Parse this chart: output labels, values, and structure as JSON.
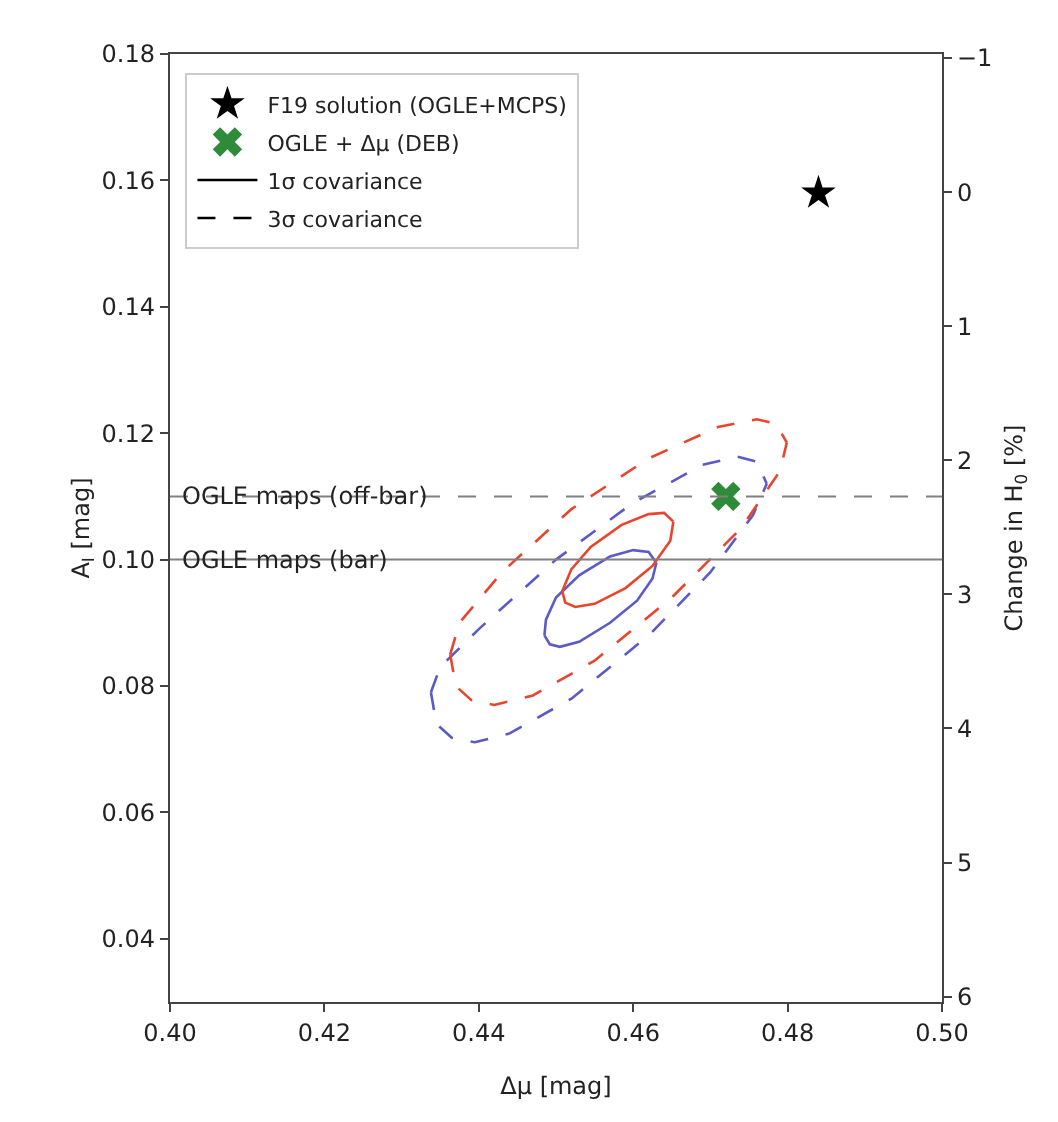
{
  "chart_data": {
    "type": "scatter",
    "xlabel": "Δμ [mag]",
    "ylabel": "A$_{I}$ [mag]",
    "y2label": "Change in H$_{0}$ [%]",
    "xlim": [
      0.4,
      0.5
    ],
    "xticks": [
      {
        "value": 0.4,
        "label": "0.40"
      },
      {
        "value": 0.42,
        "label": "0.42"
      },
      {
        "value": 0.44,
        "label": "0.44"
      },
      {
        "value": 0.46,
        "label": "0.46"
      },
      {
        "value": 0.48,
        "label": "0.48"
      },
      {
        "value": 0.5,
        "label": "0.50"
      }
    ],
    "ylim": [
      0.03,
      0.18
    ],
    "yticks": [
      {
        "value": 0.04,
        "label": "0.04"
      },
      {
        "value": 0.06,
        "label": "0.06"
      },
      {
        "value": 0.08,
        "label": "0.08"
      },
      {
        "value": 0.1,
        "label": "0.10"
      },
      {
        "value": 0.12,
        "label": "0.12"
      },
      {
        "value": 0.14,
        "label": "0.14"
      },
      {
        "value": 0.16,
        "label": "0.16"
      },
      {
        "value": 0.18,
        "label": "0.18"
      }
    ],
    "y2lim": [
      6.04,
      -1.03
    ],
    "y2ticks": [
      {
        "value": -1,
        "label": "−1"
      },
      0,
      1,
      2,
      3,
      4,
      5,
      6
    ],
    "grid": false,
    "legend": "top left",
    "ref_lines": [
      {
        "axis": "y",
        "value": 0.11,
        "label": "OGLE maps (off-bar)",
        "color": "#808080",
        "line_style": "dashed"
      },
      {
        "axis": "y",
        "value": 0.1,
        "label": "OGLE maps (bar)",
        "color": "#808080",
        "line_style": "solid"
      }
    ],
    "series": [
      {
        "name": "F19 solution (OGLE+MCPS)",
        "marker": "star",
        "color": "#000000",
        "x": [
          0.484
        ],
        "values": [
          0.158
        ]
      },
      {
        "name": "OGLE + Δμ (DEB)",
        "type": "scatter",
        "marker": "cross",
        "color": "#2e8b3a",
        "x": [
          0.472
        ],
        "values": [
          0.11
        ]
      },
      {
        "type": "line",
        "color": "#5a5ac8",
        "line_style": "solid",
        "x": [
          0.4485,
          0.4492,
          0.4505,
          0.453,
          0.457,
          0.4605,
          0.4625,
          0.463
        ],
        "values": [
          0.088,
          0.0866,
          0.0862,
          0.087,
          0.09,
          0.0935,
          0.097,
          0.0995
        ]
      },
      {
        "type": "line",
        "color": "#5a5ac8",
        "line_style": "solid",
        "x": [
          0.4485,
          0.4487,
          0.45,
          0.453,
          0.457,
          0.46,
          0.462,
          0.463
        ],
        "values": [
          0.088,
          0.0905,
          0.094,
          0.0975,
          0.1005,
          0.1015,
          0.1012,
          0.0995
        ]
      },
      {
        "type": "line",
        "color": "#e8452c",
        "line_style": "solid",
        "x": [
          0.4508,
          0.4512,
          0.4525,
          0.455,
          0.459,
          0.4625,
          0.4648,
          0.4652
        ],
        "values": [
          0.095,
          0.0932,
          0.0925,
          0.093,
          0.0955,
          0.099,
          0.103,
          0.106
        ]
      },
      {
        "type": "line",
        "color": "#e8452c",
        "line_style": "solid",
        "x": [
          0.4508,
          0.452,
          0.4545,
          0.4585,
          0.462,
          0.464,
          0.4652
        ],
        "values": [
          0.095,
          0.0985,
          0.102,
          0.1055,
          0.1072,
          0.1074,
          0.106
        ]
      },
      {
        "type": "line",
        "color": "#5a5ac8",
        "line_style": "dashed",
        "x": [
          0.4338,
          0.4345,
          0.4365,
          0.4395,
          0.444,
          0.452,
          0.462,
          0.47,
          0.4755,
          0.4773
        ],
        "values": [
          0.079,
          0.074,
          0.0718,
          0.0711,
          0.0725,
          0.078,
          0.088,
          0.098,
          0.107,
          0.112
        ]
      },
      {
        "type": "line",
        "color": "#5a5ac8",
        "line_style": "dashed",
        "x": [
          0.4338,
          0.435,
          0.44,
          0.45,
          0.46,
          0.469,
          0.4735,
          0.476,
          0.4773
        ],
        "values": [
          0.079,
          0.083,
          0.089,
          0.1,
          0.109,
          0.115,
          0.1163,
          0.1155,
          0.112
        ]
      },
      {
        "type": "line",
        "color": "#e8452c",
        "line_style": "dashed",
        "x": [
          0.4363,
          0.437,
          0.439,
          0.442,
          0.447,
          0.455,
          0.465,
          0.474,
          0.479,
          0.4799
        ],
        "values": [
          0.085,
          0.08,
          0.0778,
          0.077,
          0.0785,
          0.084,
          0.094,
          0.105,
          0.114,
          0.1185
        ]
      },
      {
        "type": "line",
        "color": "#e8452c",
        "line_style": "dashed",
        "x": [
          0.4363,
          0.4375,
          0.443,
          0.452,
          0.462,
          0.471,
          0.476,
          0.4785,
          0.4799
        ],
        "values": [
          0.085,
          0.09,
          0.098,
          0.108,
          0.116,
          0.121,
          0.1222,
          0.1215,
          0.1185
        ]
      },
      {
        "name": "1σ covariance",
        "type": "line",
        "color": "#000000",
        "line_style": "solid"
      },
      {
        "name": "3σ covariance",
        "type": "line",
        "color": "#000000",
        "line_style": "dashed"
      }
    ]
  }
}
